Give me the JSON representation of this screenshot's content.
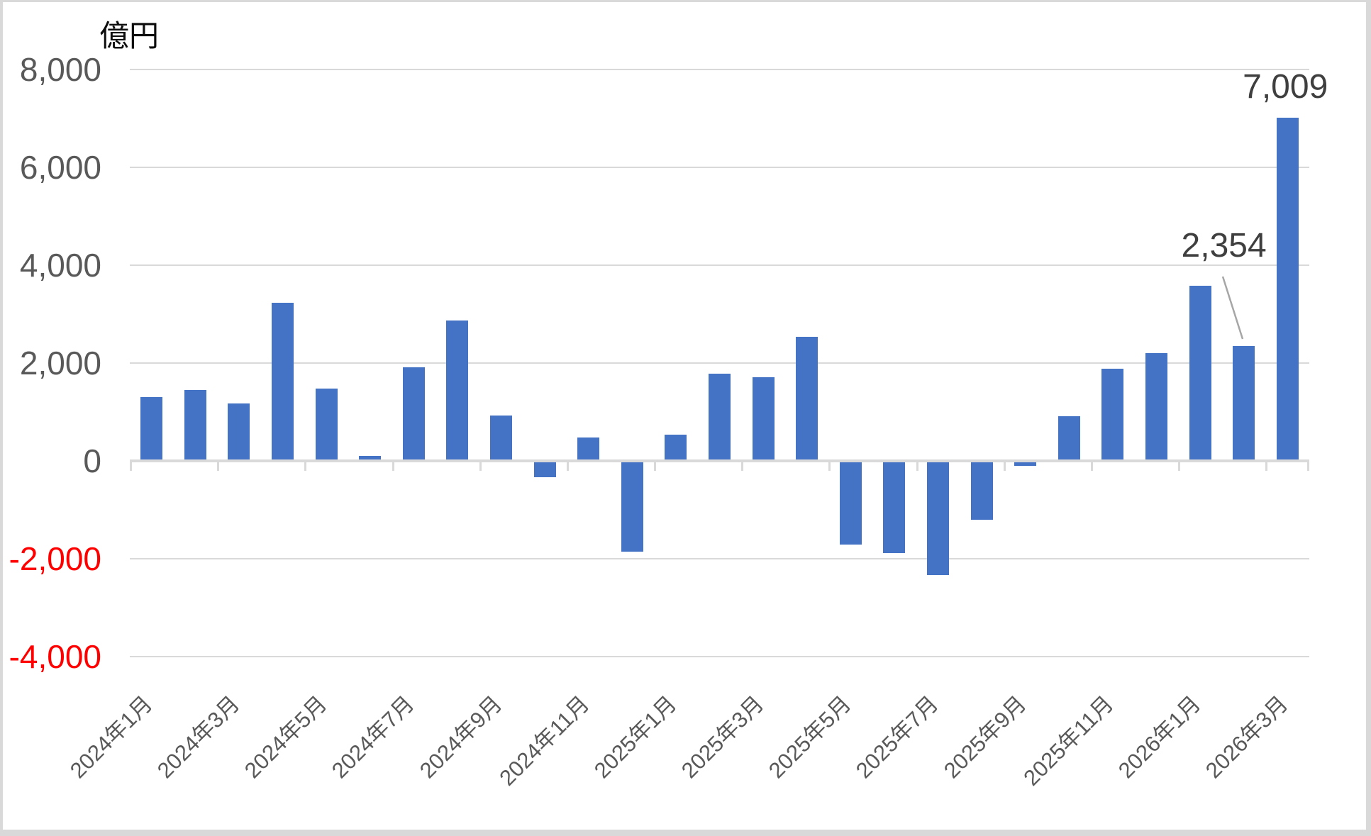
{
  "chart_data": {
    "type": "bar",
    "unit_label": "億円",
    "categories": [
      "2024年1月",
      "2024年2月",
      "2024年3月",
      "2024年4月",
      "2024年5月",
      "2024年6月",
      "2024年7月",
      "2024年8月",
      "2024年9月",
      "2024年10月",
      "2024年11月",
      "2024年12月",
      "2025年1月",
      "2025年2月",
      "2025年3月",
      "2025年4月",
      "2025年5月",
      "2025年6月",
      "2025年7月",
      "2025年8月",
      "2025年9月",
      "2025年10月",
      "2025年11月",
      "2025年12月",
      "2026年1月",
      "2026年2月",
      "2026年3月"
    ],
    "values": [
      1300,
      1450,
      1170,
      3230,
      1480,
      100,
      1910,
      2870,
      930,
      -330,
      480,
      -1850,
      540,
      1780,
      1710,
      2540,
      -1710,
      -1880,
      -2330,
      -1200,
      -100,
      910,
      1890,
      2200,
      3580,
      2354,
      7009
    ],
    "visible_x_tick_labels": [
      "2024年1月",
      "2024年3月",
      "2024年5月",
      "2024年7月",
      "2024年9月",
      "2024年11月",
      "2025年1月",
      "2025年3月",
      "2025年5月",
      "2025年7月",
      "2025年9月",
      "2025年11月",
      "2026年1月",
      "2026年3月"
    ],
    "y_axis": {
      "tick_values": [
        8000,
        6000,
        4000,
        2000,
        0,
        -2000,
        -4000
      ],
      "tick_labels": [
        "8,000",
        "6,000",
        "4,000",
        "2,000",
        "0",
        "-2,000",
        "-4,000"
      ]
    },
    "ylim": [
      -4000,
      8000
    ],
    "grid": true,
    "legend": "none",
    "data_labels": [
      {
        "index": 25,
        "category": "2026年2月",
        "text": "2,354"
      },
      {
        "index": 26,
        "category": "2026年3月",
        "text": "7,009"
      }
    ],
    "colors": {
      "bar": "#4472C4",
      "gridline": "#D9D9D9",
      "axis_line": "#D9D9D9",
      "tick_label": "#595959",
      "negative_tick_label": "#FF0000",
      "x_label": "#595959",
      "data_label": "#3F3F3F",
      "leader_line": "#A6A6A6"
    }
  }
}
